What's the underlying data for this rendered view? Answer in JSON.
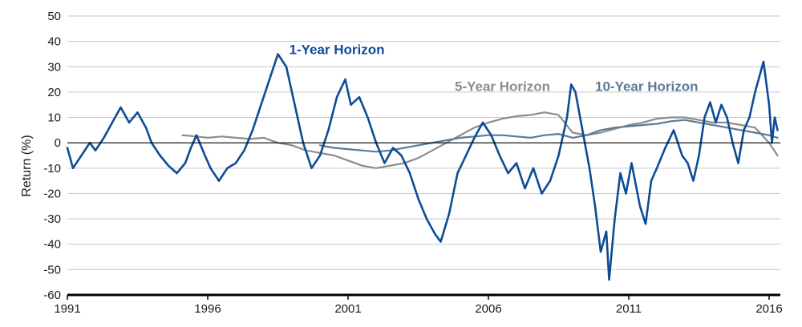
{
  "chart_data": {
    "type": "line",
    "title": "",
    "xlabel": "",
    "ylabel": "Return (%)",
    "xlim": [
      1991.0,
      2016.4
    ],
    "ylim": [
      -60,
      50
    ],
    "yticks": [
      50,
      40,
      30,
      20,
      10,
      0,
      -10,
      -20,
      -30,
      -40,
      -50,
      -60
    ],
    "ytick_labels": [
      "50",
      "40",
      "30",
      "20",
      "10",
      "0",
      "-10",
      "-20",
      "-30",
      "-40",
      "-50",
      "-60"
    ],
    "xticks": [
      1991,
      1996,
      2001,
      2006,
      2011,
      2016
    ],
    "xtick_labels": [
      "1991",
      "1996",
      "2001",
      "2006",
      "2011",
      "2016"
    ],
    "grid": "horizontal",
    "zero_line": true,
    "series": [
      {
        "name": "5-Year Horizon",
        "color": "#8c8c8c",
        "points": [
          [
            1995.1,
            3
          ],
          [
            1995.6,
            2.5
          ],
          [
            1996.0,
            2
          ],
          [
            1996.5,
            2.5
          ],
          [
            1997.0,
            2
          ],
          [
            1997.5,
            1.5
          ],
          [
            1998.0,
            2
          ],
          [
            1998.5,
            0
          ],
          [
            1999.0,
            -1
          ],
          [
            1999.5,
            -3
          ],
          [
            2000.0,
            -4
          ],
          [
            2000.5,
            -5
          ],
          [
            2001.0,
            -7
          ],
          [
            2001.5,
            -9
          ],
          [
            2002.0,
            -10
          ],
          [
            2002.5,
            -9
          ],
          [
            2003.0,
            -8
          ],
          [
            2003.5,
            -6
          ],
          [
            2004.0,
            -3
          ],
          [
            2004.5,
            0
          ],
          [
            2005.0,
            3
          ],
          [
            2005.5,
            6
          ],
          [
            2006.0,
            8
          ],
          [
            2006.5,
            9.5
          ],
          [
            2007.0,
            10.5
          ],
          [
            2007.5,
            11
          ],
          [
            2008.0,
            12
          ],
          [
            2008.5,
            11
          ],
          [
            2009.0,
            4
          ],
          [
            2009.5,
            3
          ],
          [
            2010.0,
            4
          ],
          [
            2010.5,
            5.5
          ],
          [
            2011.0,
            7
          ],
          [
            2011.5,
            8
          ],
          [
            2012.0,
            9.5
          ],
          [
            2012.5,
            10
          ],
          [
            2013.0,
            10
          ],
          [
            2013.5,
            9
          ],
          [
            2014.0,
            8
          ],
          [
            2014.5,
            8
          ],
          [
            2015.0,
            7
          ],
          [
            2015.5,
            6
          ],
          [
            2016.0,
            0
          ],
          [
            2016.3,
            -5
          ]
        ]
      },
      {
        "name": "10-Year Horizon",
        "color": "#5b7a96",
        "points": [
          [
            2000.0,
            -1
          ],
          [
            2000.5,
            -2
          ],
          [
            2001.0,
            -2.5
          ],
          [
            2001.5,
            -3
          ],
          [
            2002.0,
            -3.5
          ],
          [
            2002.5,
            -3
          ],
          [
            2003.0,
            -2
          ],
          [
            2003.5,
            -1
          ],
          [
            2004.0,
            0
          ],
          [
            2004.5,
            1
          ],
          [
            2005.0,
            2
          ],
          [
            2005.5,
            2.5
          ],
          [
            2006.0,
            3
          ],
          [
            2006.5,
            3
          ],
          [
            2007.0,
            2.5
          ],
          [
            2007.5,
            2
          ],
          [
            2008.0,
            3
          ],
          [
            2008.5,
            3.5
          ],
          [
            2009.0,
            2
          ],
          [
            2009.5,
            3
          ],
          [
            2010.0,
            5
          ],
          [
            2010.5,
            6
          ],
          [
            2011.0,
            6.5
          ],
          [
            2011.5,
            7
          ],
          [
            2012.0,
            7.5
          ],
          [
            2012.5,
            8.5
          ],
          [
            2013.0,
            9
          ],
          [
            2013.5,
            8
          ],
          [
            2014.0,
            7
          ],
          [
            2014.5,
            6
          ],
          [
            2015.0,
            5
          ],
          [
            2015.5,
            4
          ],
          [
            2016.0,
            3
          ],
          [
            2016.3,
            2
          ]
        ]
      },
      {
        "name": "1-Year Horizon",
        "color": "#0d4c95",
        "points": [
          [
            1991.0,
            -2
          ],
          [
            1991.2,
            -10
          ],
          [
            1991.5,
            -5
          ],
          [
            1991.8,
            0
          ],
          [
            1992.0,
            -3
          ],
          [
            1992.3,
            2
          ],
          [
            1992.7,
            10
          ],
          [
            1992.9,
            14
          ],
          [
            1993.2,
            8
          ],
          [
            1993.5,
            12
          ],
          [
            1993.8,
            6
          ],
          [
            1994.0,
            0
          ],
          [
            1994.3,
            -5
          ],
          [
            1994.6,
            -9
          ],
          [
            1994.9,
            -12
          ],
          [
            1995.2,
            -8
          ],
          [
            1995.4,
            -2
          ],
          [
            1995.6,
            3
          ],
          [
            1995.9,
            -5
          ],
          [
            1996.1,
            -10
          ],
          [
            1996.4,
            -15
          ],
          [
            1996.7,
            -10
          ],
          [
            1997.0,
            -8
          ],
          [
            1997.3,
            -3
          ],
          [
            1997.6,
            5
          ],
          [
            1997.9,
            15
          ],
          [
            1998.2,
            25
          ],
          [
            1998.5,
            35
          ],
          [
            1998.8,
            30
          ],
          [
            1999.1,
            15
          ],
          [
            1999.4,
            0
          ],
          [
            1999.7,
            -10
          ],
          [
            2000.0,
            -5
          ],
          [
            2000.3,
            5
          ],
          [
            2000.6,
            18
          ],
          [
            2000.9,
            25
          ],
          [
            2001.1,
            15
          ],
          [
            2001.4,
            18
          ],
          [
            2001.7,
            10
          ],
          [
            2002.0,
            0
          ],
          [
            2002.3,
            -8
          ],
          [
            2002.6,
            -2
          ],
          [
            2002.9,
            -5
          ],
          [
            2003.2,
            -12
          ],
          [
            2003.5,
            -22
          ],
          [
            2003.8,
            -30
          ],
          [
            2004.1,
            -36
          ],
          [
            2004.3,
            -39
          ],
          [
            2004.6,
            -28
          ],
          [
            2004.9,
            -12
          ],
          [
            2005.2,
            -5
          ],
          [
            2005.5,
            2
          ],
          [
            2005.8,
            8
          ],
          [
            2006.1,
            3
          ],
          [
            2006.4,
            -5
          ],
          [
            2006.7,
            -12
          ],
          [
            2007.0,
            -8
          ],
          [
            2007.3,
            -18
          ],
          [
            2007.6,
            -10
          ],
          [
            2007.9,
            -20
          ],
          [
            2008.2,
            -15
          ],
          [
            2008.5,
            -5
          ],
          [
            2008.8,
            10
          ],
          [
            2008.95,
            23
          ],
          [
            2009.1,
            20
          ],
          [
            2009.3,
            8
          ],
          [
            2009.6,
            -10
          ],
          [
            2009.8,
            -25
          ],
          [
            2010.0,
            -43
          ],
          [
            2010.2,
            -35
          ],
          [
            2010.3,
            -54
          ],
          [
            2010.5,
            -30
          ],
          [
            2010.7,
            -12
          ],
          [
            2010.9,
            -20
          ],
          [
            2011.1,
            -8
          ],
          [
            2011.4,
            -25
          ],
          [
            2011.6,
            -32
          ],
          [
            2011.8,
            -15
          ],
          [
            2012.0,
            -10
          ],
          [
            2012.3,
            -2
          ],
          [
            2012.6,
            5
          ],
          [
            2012.9,
            -5
          ],
          [
            2013.1,
            -8
          ],
          [
            2013.3,
            -15
          ],
          [
            2013.5,
            -5
          ],
          [
            2013.7,
            10
          ],
          [
            2013.9,
            16
          ],
          [
            2014.1,
            8
          ],
          [
            2014.3,
            15
          ],
          [
            2014.5,
            10
          ],
          [
            2014.7,
            0
          ],
          [
            2014.9,
            -8
          ],
          [
            2015.1,
            5
          ],
          [
            2015.3,
            10
          ],
          [
            2015.5,
            20
          ],
          [
            2015.7,
            28
          ],
          [
            2015.8,
            32
          ],
          [
            2016.0,
            15
          ],
          [
            2016.1,
            0
          ],
          [
            2016.2,
            10
          ],
          [
            2016.3,
            5
          ]
        ]
      }
    ],
    "annotations": [
      {
        "text": "1-Year Horizon",
        "color": "#0d4c95",
        "x": 1998.9,
        "y": 35
      },
      {
        "text": "5-Year Horizon",
        "color": "#8c8c8c",
        "x": 2004.8,
        "y": 20.5
      },
      {
        "text": "10-Year Horizon",
        "color": "#5b7a96",
        "x": 2009.8,
        "y": 20.5
      }
    ]
  }
}
